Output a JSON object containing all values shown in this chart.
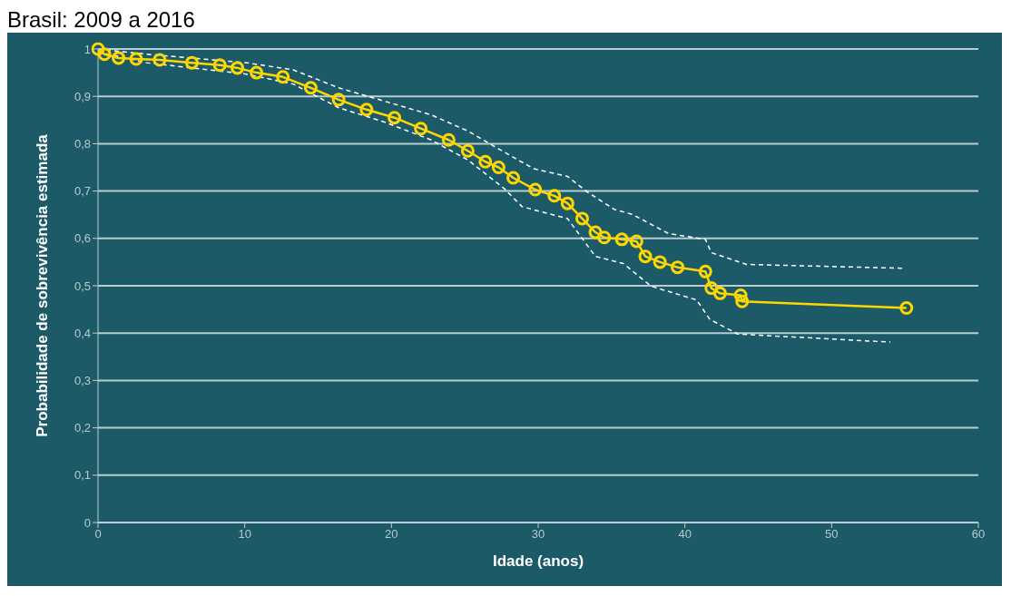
{
  "chart_data": {
    "type": "line",
    "title": "Brasil: 2009 a 2016",
    "xlabel": "Idade (anos)",
    "ylabel": "Probabilidade de sobrevivência estimada",
    "xlim": [
      0,
      60
    ],
    "xticks": [
      0,
      10,
      20,
      30,
      40,
      50,
      60
    ],
    "ylim": [
      0,
      1
    ],
    "yticks": [
      {
        "value": 0,
        "label": "0"
      },
      {
        "value": 0.1,
        "label": "0,1"
      },
      {
        "value": 0.2,
        "label": "0,2"
      },
      {
        "value": 0.3,
        "label": "0,3"
      },
      {
        "value": 0.4,
        "label": "0,4"
      },
      {
        "value": 0.5,
        "label": "0,5"
      },
      {
        "value": 0.6,
        "label": "0,6"
      },
      {
        "value": 0.7,
        "label": "0,7"
      },
      {
        "value": 0.8,
        "label": "0,8"
      },
      {
        "value": 0.9,
        "label": "0,9"
      },
      {
        "value": 1,
        "label": "1"
      }
    ],
    "grid": "y",
    "series": [
      {
        "color": "#ffffff",
        "line_style": "dashed",
        "marker": "none",
        "x": [
          0,
          3.3,
          10.1,
          13.3,
          16.4,
          19.5,
          22.7,
          25.2,
          27.3,
          29.7,
          32.0,
          33.3,
          35.2,
          36.4,
          38.9,
          41.4,
          41.8,
          44.2,
          54.8
        ],
        "values": [
          1.0,
          0.989,
          0.971,
          0.956,
          0.918,
          0.89,
          0.861,
          0.827,
          0.789,
          0.747,
          0.731,
          0.699,
          0.661,
          0.651,
          0.61,
          0.598,
          0.57,
          0.545,
          0.537
        ]
      },
      {
        "color": "#ffffff",
        "line_style": "dashed",
        "marker": "none",
        "x": [
          0,
          3.3,
          10.1,
          13.3,
          16.4,
          19.5,
          22.7,
          25.2,
          27.7,
          28.9,
          32.0,
          33.9,
          35.8,
          37.7,
          40.8,
          41.7,
          43.6,
          54.0
        ],
        "values": [
          0.994,
          0.971,
          0.947,
          0.926,
          0.876,
          0.846,
          0.808,
          0.766,
          0.705,
          0.667,
          0.642,
          0.562,
          0.547,
          0.499,
          0.47,
          0.429,
          0.398,
          0.381
        ]
      },
      {
        "color": "#ffd700",
        "line_style": "solid",
        "marker": "circle",
        "x": [
          0,
          0.44,
          1.4,
          2.6,
          4.2,
          6.4,
          8.3,
          9.5,
          10.8,
          12.6,
          14.5,
          16.4,
          18.3,
          20.2,
          22.0,
          23.9,
          25.2,
          26.4,
          27.3,
          28.3,
          29.8,
          31.1,
          32.0,
          33.0,
          33.9,
          34.5,
          35.7,
          36.7,
          37.3,
          38.3,
          39.5,
          41.4,
          41.8,
          42.4,
          43.8,
          43.9,
          55.1
        ],
        "values": [
          1.0,
          0.989,
          0.981,
          0.979,
          0.977,
          0.971,
          0.966,
          0.96,
          0.95,
          0.941,
          0.918,
          0.893,
          0.872,
          0.855,
          0.832,
          0.808,
          0.785,
          0.762,
          0.75,
          0.728,
          0.703,
          0.69,
          0.674,
          0.642,
          0.613,
          0.602,
          0.598,
          0.594,
          0.562,
          0.55,
          0.539,
          0.53,
          0.495,
          0.484,
          0.48,
          0.467,
          0.453
        ]
      }
    ]
  }
}
